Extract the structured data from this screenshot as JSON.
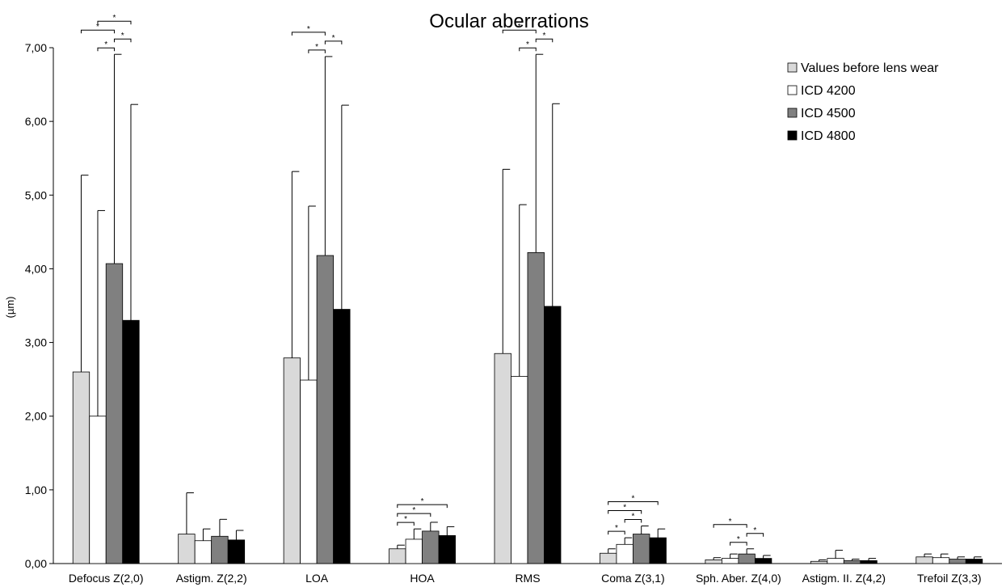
{
  "chart_data": {
    "type": "bar",
    "title": "Ocular aberrations",
    "ylabel": "(µm)",
    "xlabel": "",
    "ylim": [
      0,
      7
    ],
    "yticks": [
      0,
      1,
      2,
      3,
      4,
      5,
      6,
      7
    ],
    "ytick_labels": [
      "0,00",
      "1,00",
      "2,00",
      "3,00",
      "4,00",
      "5,00",
      "6,00",
      "7,00"
    ],
    "categories": [
      "Defocus Z(2,0)",
      "Astigm. Z(2,2)",
      "LOA",
      "HOA",
      "RMS",
      "Coma Z(3,1)",
      "Sph. Aber. Z(4,0)",
      "Astigm. II. Z(4,2)",
      "Trefoil Z(3,3)"
    ],
    "legend_position": "top-right",
    "grid": false,
    "series": [
      {
        "name": "Values before lens wear",
        "color": "#d9d9d9",
        "values": [
          2.6,
          0.4,
          2.79,
          0.2,
          2.85,
          0.14,
          0.05,
          0.03,
          0.09
        ],
        "errors": [
          2.67,
          0.56,
          2.53,
          0.05,
          2.5,
          0.06,
          0.03,
          0.02,
          0.04
        ]
      },
      {
        "name": "ICD 4200",
        "color": "#ffffff",
        "values": [
          2.0,
          0.31,
          2.49,
          0.33,
          2.54,
          0.26,
          0.07,
          0.07,
          0.08
        ],
        "errors": [
          2.79,
          0.16,
          2.36,
          0.14,
          2.33,
          0.09,
          0.06,
          0.11,
          0.05
        ]
      },
      {
        "name": "ICD 4500",
        "color": "#808080",
        "values": [
          4.07,
          0.37,
          4.18,
          0.44,
          4.22,
          0.4,
          0.13,
          0.04,
          0.06
        ],
        "errors": [
          2.84,
          0.23,
          2.7,
          0.12,
          2.69,
          0.11,
          0.07,
          0.02,
          0.03
        ]
      },
      {
        "name": "ICD 4800",
        "color": "#000000",
        "values": [
          3.3,
          0.32,
          3.45,
          0.38,
          3.49,
          0.35,
          0.07,
          0.04,
          0.06
        ],
        "errors": [
          2.93,
          0.13,
          2.77,
          0.12,
          2.75,
          0.12,
          0.04,
          0.03,
          0.03
        ]
      }
    ],
    "significance": [
      {
        "category": 0,
        "pairs": [
          [
            0,
            2
          ],
          [
            1,
            2
          ],
          [
            1,
            3
          ],
          [
            2,
            3
          ]
        ]
      },
      {
        "category": 2,
        "pairs": [
          [
            0,
            2
          ],
          [
            1,
            2
          ],
          [
            2,
            3
          ]
        ]
      },
      {
        "category": 3,
        "pairs": [
          [
            0,
            1
          ],
          [
            0,
            2
          ],
          [
            0,
            3
          ]
        ]
      },
      {
        "category": 4,
        "pairs": [
          [
            0,
            2
          ],
          [
            1,
            2
          ],
          [
            2,
            3
          ]
        ]
      },
      {
        "category": 5,
        "pairs": [
          [
            0,
            1
          ],
          [
            0,
            2
          ],
          [
            0,
            3
          ],
          [
            1,
            2
          ]
        ]
      },
      {
        "category": 6,
        "pairs": [
          [
            0,
            2
          ],
          [
            1,
            2
          ],
          [
            2,
            3
          ]
        ]
      }
    ],
    "significance_mark": "*"
  }
}
